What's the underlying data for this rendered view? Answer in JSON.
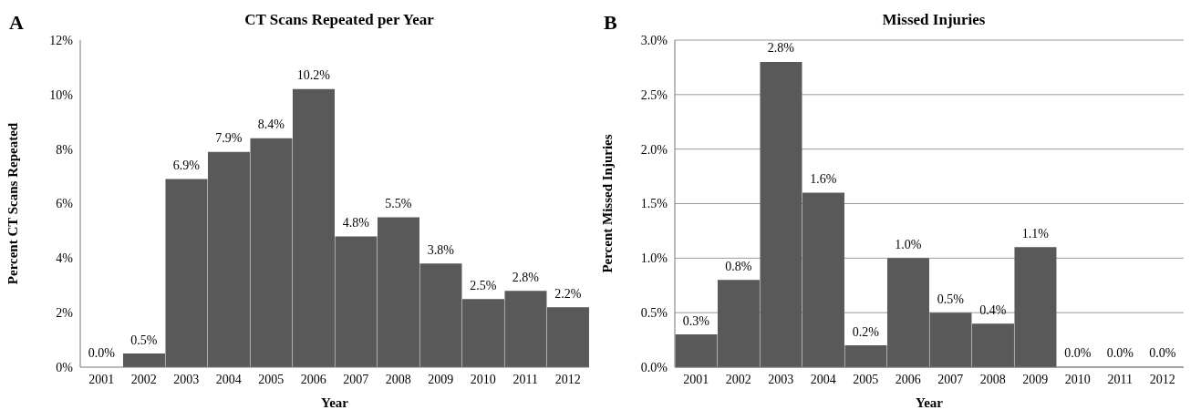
{
  "chart_data": [
    {
      "type": "bar",
      "title": "CT Scans Repeated per Year",
      "xlabel": "Year",
      "ylabel": "Percent CT Scans Repeated",
      "annotations": [
        "A"
      ],
      "categories": [
        "2001",
        "2002",
        "2003",
        "2004",
        "2005",
        "2006",
        "2007",
        "2008",
        "2009",
        "2010",
        "2011",
        "2012"
      ],
      "values": [
        0.0,
        0.5,
        6.9,
        7.9,
        8.4,
        10.2,
        4.8,
        5.5,
        3.8,
        2.5,
        2.8,
        2.2
      ],
      "value_labels": [
        "0.0%",
        "0.5%",
        "6.9%",
        "7.9%",
        "8.4%",
        "10.2%",
        "4.8%",
        "5.5%",
        "3.8%",
        "2.5%",
        "2.8%",
        "2.2%"
      ],
      "color": "#595959",
      "ylim": [
        0,
        12
      ],
      "yticks": [
        {
          "value": 0,
          "label": "0%"
        },
        {
          "value": 2,
          "label": "2%"
        },
        {
          "value": 4,
          "label": "4%"
        },
        {
          "value": 6,
          "label": "6%"
        },
        {
          "value": 8,
          "label": "8%"
        },
        {
          "value": 10,
          "label": "10%"
        },
        {
          "value": 12,
          "label": "12%"
        }
      ],
      "grid": false
    },
    {
      "type": "bar",
      "title": "Missed Injuries",
      "xlabel": "Year",
      "ylabel": "Percent Missed Injuries",
      "annotations": [
        "B"
      ],
      "categories": [
        "2001",
        "2002",
        "2003",
        "2004",
        "2005",
        "2006",
        "2007",
        "2008",
        "2009",
        "2010",
        "2011",
        "2012"
      ],
      "values": [
        0.3,
        0.8,
        2.8,
        1.6,
        0.2,
        1.0,
        0.5,
        0.4,
        1.1,
        0.0,
        0.0,
        0.0
      ],
      "value_labels": [
        "0.3%",
        "0.8%",
        "2.8%",
        "1.6%",
        "0.2%",
        "1.0%",
        "0.5%",
        "0.4%",
        "1.1%",
        "0.0%",
        "0.0%",
        "0.0%"
      ],
      "color": "#595959",
      "ylim": [
        0,
        3
      ],
      "yticks": [
        {
          "value": 0,
          "label": "0.0%"
        },
        {
          "value": 0.5,
          "label": "0.5%"
        },
        {
          "value": 1,
          "label": "1.0%"
        },
        {
          "value": 1.5,
          "label": "1.5%"
        },
        {
          "value": 2,
          "label": "2.0%"
        },
        {
          "value": 2.5,
          "label": "2.5%"
        },
        {
          "value": 3,
          "label": "3.0%"
        }
      ],
      "grid": "y"
    }
  ]
}
